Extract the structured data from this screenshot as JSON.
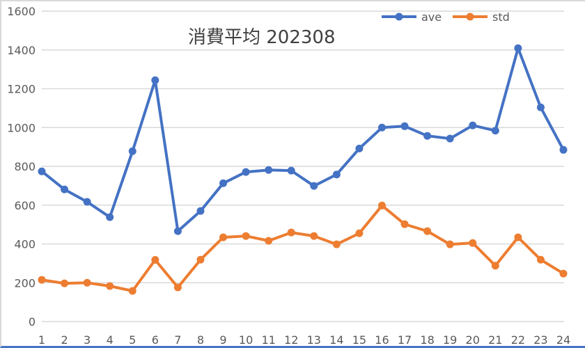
{
  "chart_data": {
    "type": "line",
    "title": "消費平均 202308",
    "xlabel": "",
    "ylabel": "",
    "categories": [
      "1",
      "2",
      "3",
      "4",
      "5",
      "6",
      "7",
      "8",
      "9",
      "10",
      "11",
      "12",
      "13",
      "14",
      "15",
      "16",
      "17",
      "18",
      "19",
      "20",
      "21",
      "22",
      "23",
      "24"
    ],
    "series": [
      {
        "name": "ave",
        "color": "#4472c4",
        "values": [
          774,
          681,
          617,
          538,
          878,
          1244,
          466,
          570,
          713,
          771,
          781,
          778,
          699,
          758,
          892,
          1000,
          1007,
          957,
          943,
          1011,
          984,
          1409,
          1104,
          885
        ]
      },
      {
        "name": "std",
        "color": "#ed7d31",
        "values": [
          215,
          197,
          200,
          183,
          158,
          318,
          176,
          319,
          434,
          441,
          416,
          459,
          441,
          398,
          455,
          598,
          502,
          466,
          398,
          405,
          288,
          434,
          319,
          247
        ]
      }
    ],
    "ylim": [
      0,
      1600
    ],
    "yticks": [
      "0",
      "200",
      "400",
      "600",
      "800",
      "1000",
      "1200",
      "1400",
      "1600"
    ],
    "grid": true,
    "legend_position": "top-right"
  },
  "legend": {
    "items": [
      {
        "label": "ave",
        "color": "#4472c4"
      },
      {
        "label": "std",
        "color": "#ed7d31"
      }
    ]
  }
}
